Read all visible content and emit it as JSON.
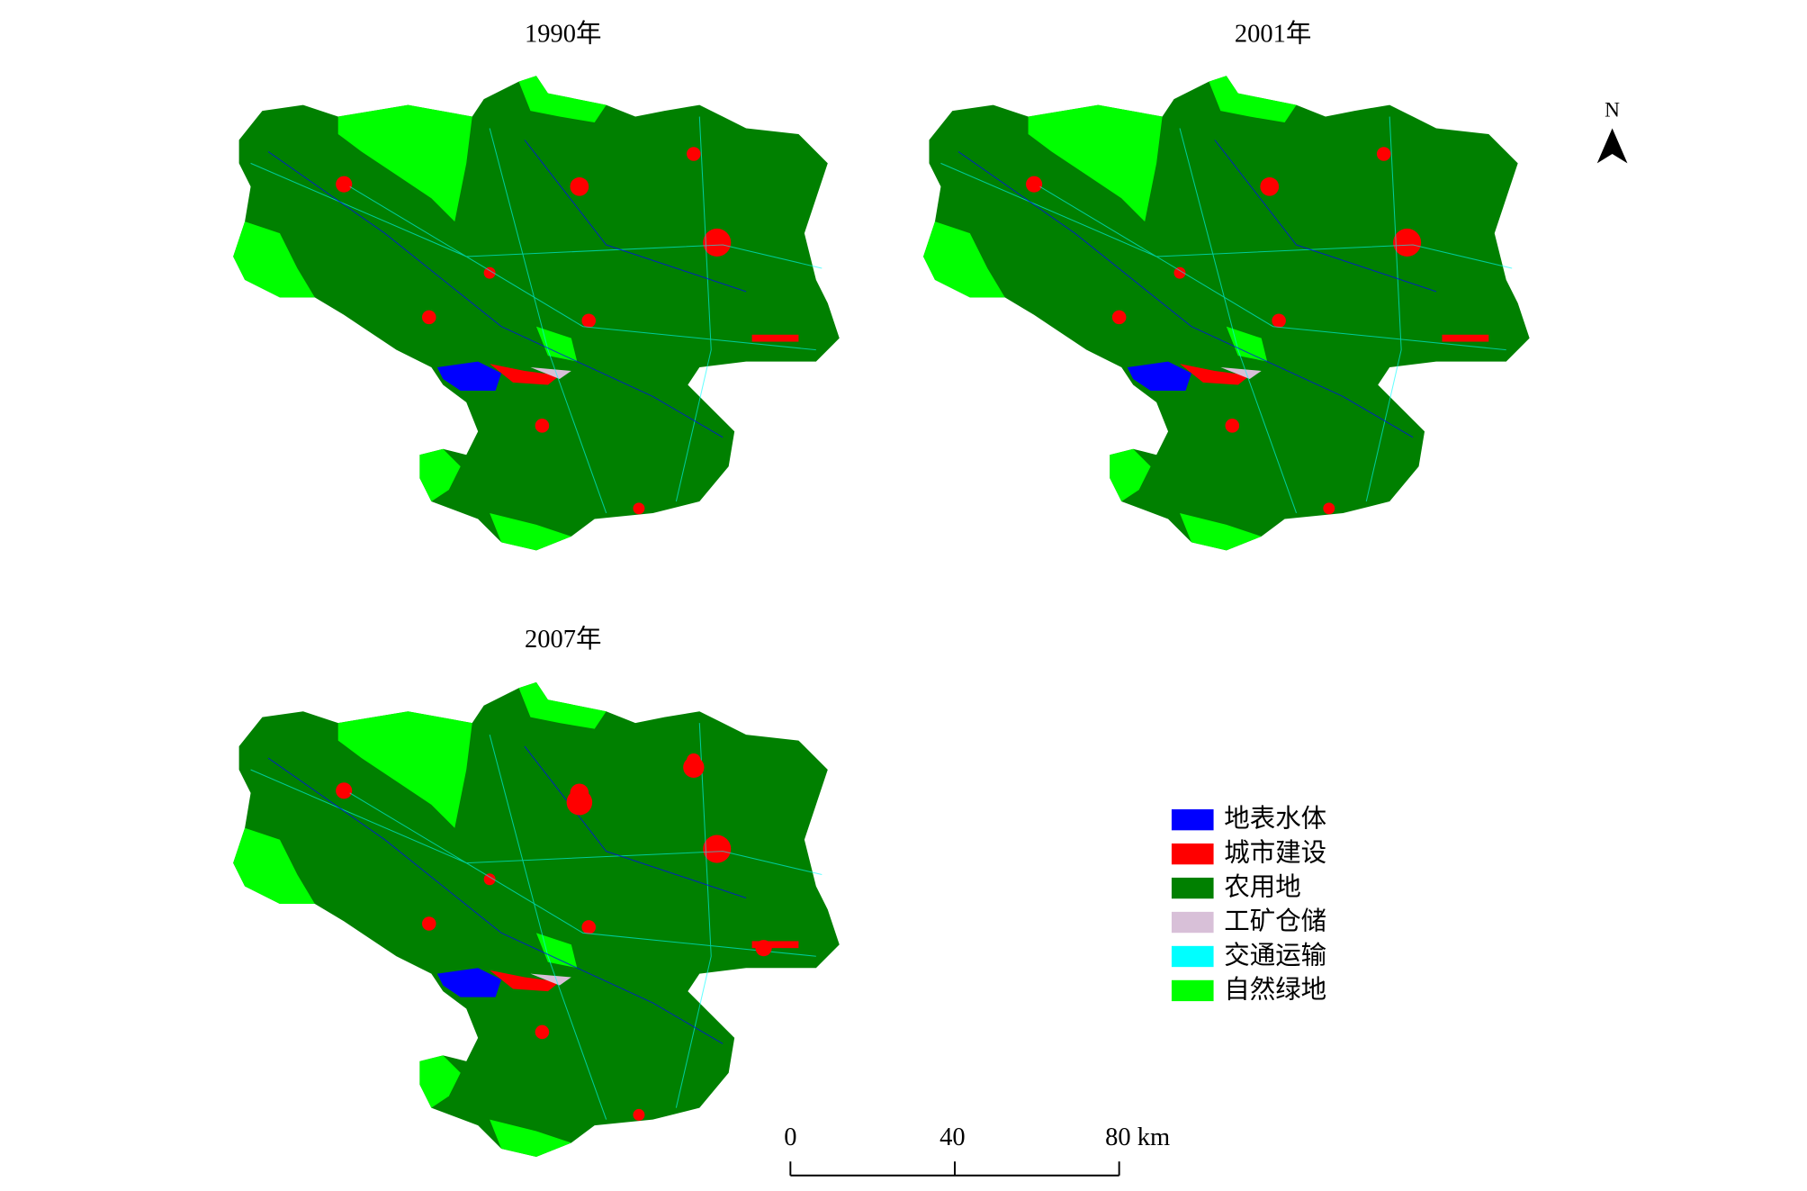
{
  "maps": [
    {
      "title": "1990年"
    },
    {
      "title": "2001年"
    },
    {
      "title": "2007年"
    }
  ],
  "north_arrow": {
    "label": "N"
  },
  "legend": {
    "items": [
      {
        "label": "地表水体",
        "color": "#0000ff"
      },
      {
        "label": "城市建设",
        "color": "#ff0000"
      },
      {
        "label": "农用地",
        "color": "#008000"
      },
      {
        "label": "工矿仓储",
        "color": "#d8c0d8"
      },
      {
        "label": "交通运输",
        "color": "#00ffff"
      },
      {
        "label": "自然绿地",
        "color": "#00ff00"
      }
    ]
  },
  "scale_bar": {
    "labels": [
      "0",
      "40",
      "80 km"
    ]
  }
}
